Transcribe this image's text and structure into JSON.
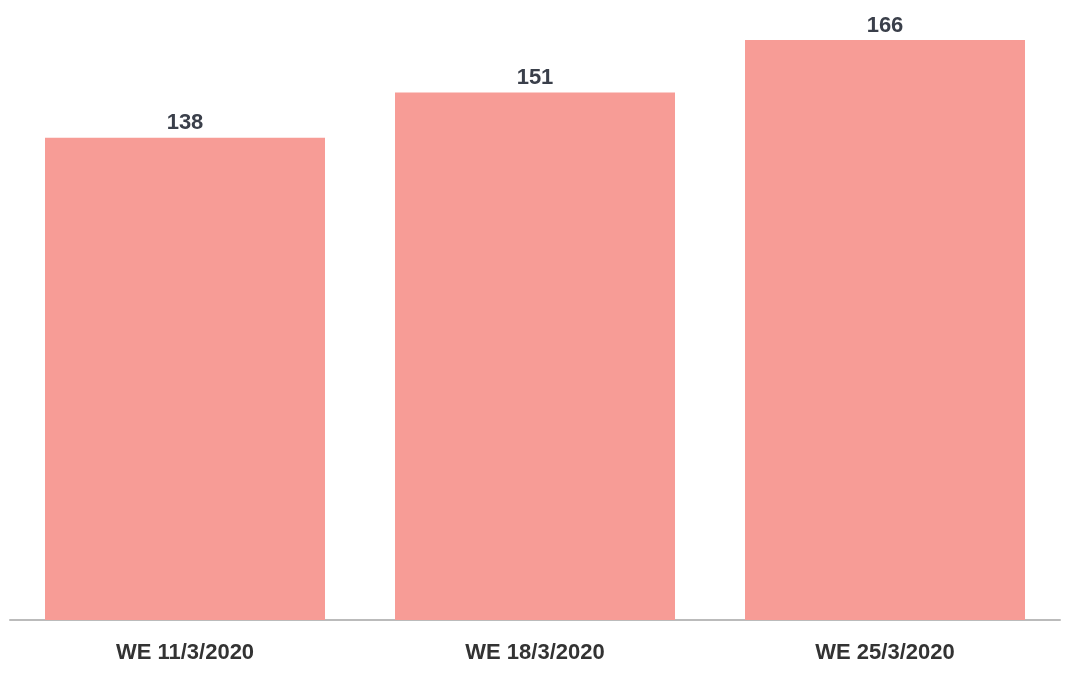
{
  "chart_data": {
    "type": "bar",
    "categories": [
      "WE 11/3/2020",
      "WE 18/3/2020",
      "WE 25/3/2020"
    ],
    "values": [
      138,
      151,
      166
    ],
    "color": "#f79c96",
    "data_labels": true
  }
}
